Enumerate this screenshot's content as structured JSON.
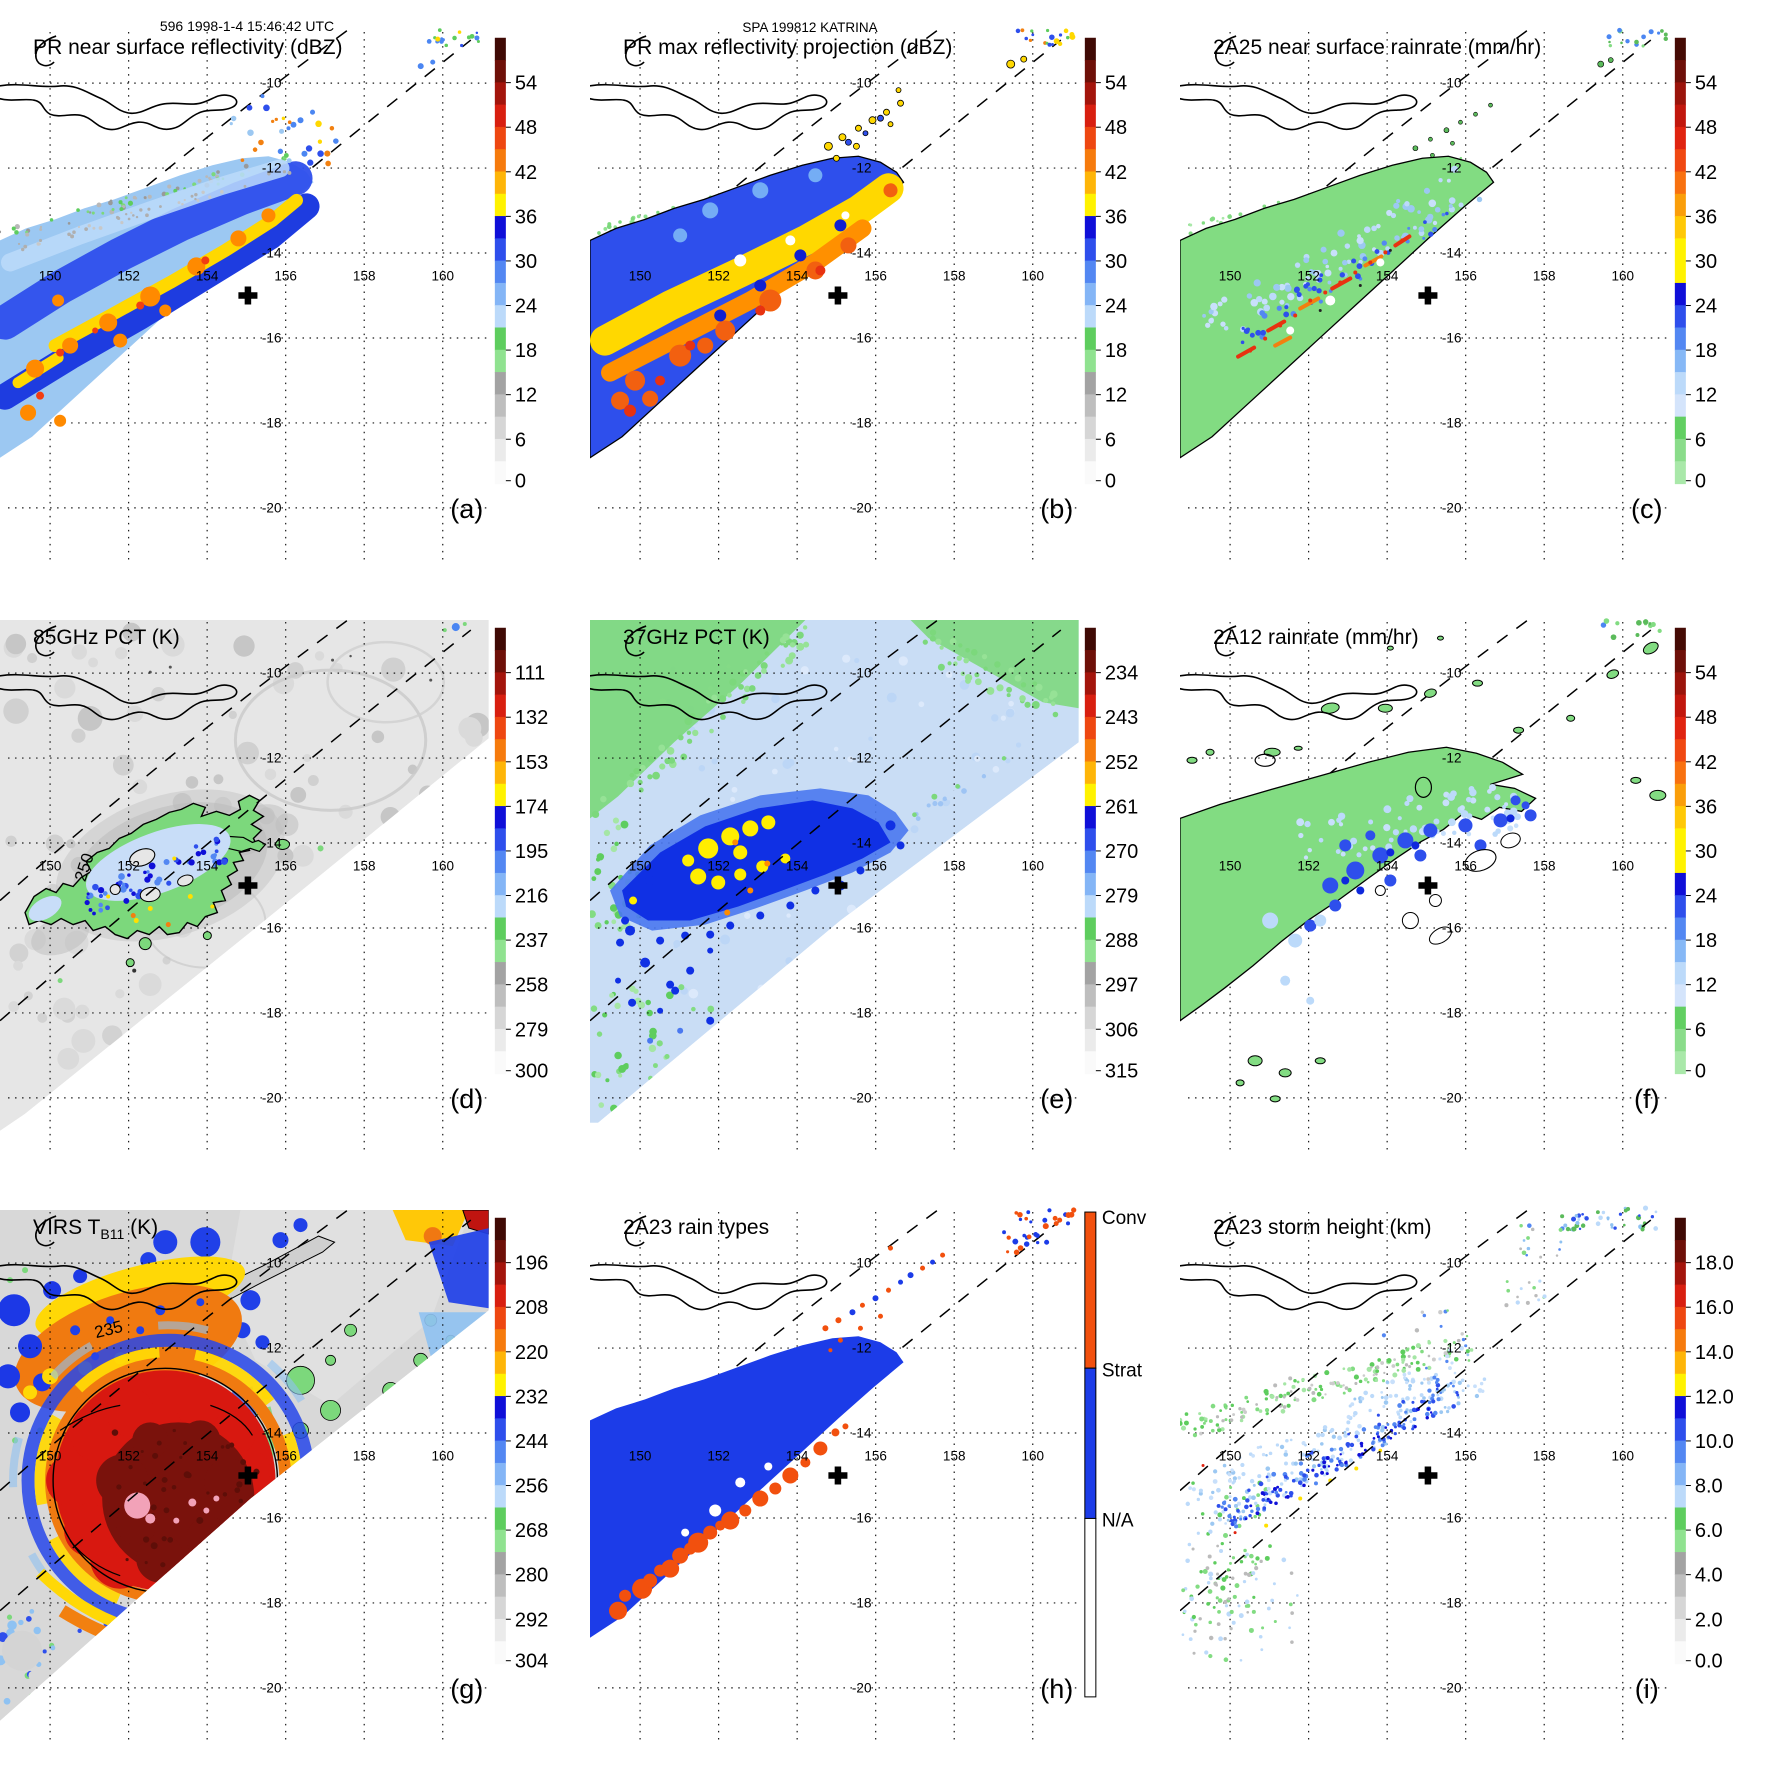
{
  "header": {
    "left": "596 1998-1-4 15:46:42 UTC",
    "center": "SPA 199812 KATRINA"
  },
  "map": {
    "lon_labels": [
      "150",
      "152",
      "154",
      "156",
      "158",
      "160"
    ],
    "lat_labels": [
      "-10",
      "-12",
      "-14",
      "-16",
      "-18",
      "-20"
    ],
    "center_marker": "+"
  },
  "panels": [
    {
      "id": "a",
      "letter": "(a)",
      "title": "PR near surface reflectivity (dBZ)",
      "colorbar_ticks": [
        "54",
        "48",
        "42",
        "36",
        "30",
        "24",
        "18",
        "12",
        "6",
        "0"
      ]
    },
    {
      "id": "b",
      "letter": "(b)",
      "title": "PR max reflectivity projection (dBZ)",
      "colorbar_ticks": [
        "54",
        "48",
        "42",
        "36",
        "30",
        "24",
        "18",
        "12",
        "6",
        "0"
      ]
    },
    {
      "id": "c",
      "letter": "(c)",
      "title": "2A25 near surface rainrate (mm/hr)",
      "colorbar_ticks": [
        "54",
        "48",
        "42",
        "36",
        "30",
        "24",
        "18",
        "12",
        "6",
        "0"
      ]
    },
    {
      "id": "d",
      "letter": "(d)",
      "title": "85GHz PCT (K)",
      "colorbar_ticks": [
        "111",
        "132",
        "153",
        "174",
        "195",
        "216",
        "237",
        "258",
        "279",
        "300"
      ],
      "contour_label": "250"
    },
    {
      "id": "e",
      "letter": "(e)",
      "title": "37GHz PCT (K)",
      "colorbar_ticks": [
        "234",
        "243",
        "252",
        "261",
        "270",
        "279",
        "288",
        "297",
        "306",
        "315"
      ]
    },
    {
      "id": "f",
      "letter": "(f)",
      "title": "2A12 rainrate (mm/hr)",
      "colorbar_ticks": [
        "54",
        "48",
        "42",
        "36",
        "30",
        "24",
        "18",
        "12",
        "6",
        "0"
      ]
    },
    {
      "id": "g",
      "letter": "(g)",
      "title_parts": {
        "pre": "VIRS T",
        "sub": "B11",
        "post": " (K)"
      },
      "colorbar_ticks": [
        "196",
        "208",
        "220",
        "232",
        "244",
        "256",
        "268",
        "280",
        "292",
        "304"
      ],
      "contour_label": "235"
    },
    {
      "id": "h",
      "letter": "(h)",
      "title": "2A23 rain types",
      "rain_type_labels": [
        "Conv",
        "Strat",
        "N/A"
      ]
    },
    {
      "id": "i",
      "letter": "(i)",
      "title": "2A23 storm height (km)",
      "colorbar_ticks": [
        "18.0",
        "16.0",
        "14.0",
        "12.0",
        "10.0",
        "8.0",
        "6.0",
        "4.0",
        "2.0",
        "0.0"
      ]
    }
  ],
  "chart_data": {
    "type": "heatmap",
    "figure": "3x3 multi-panel TRMM satellite overpass maps",
    "overpass": {
      "orbit": "596",
      "datetime_utc": "1998-1-4 15:46:42",
      "storm": "SPA 199812 KATRINA"
    },
    "axes": {
      "lon_ticks": [
        150,
        152,
        154,
        156,
        158,
        160
      ],
      "lat_ticks": [
        -10,
        -12,
        -14,
        -16,
        -18,
        -20
      ],
      "lon_range": [
        148.9,
        161.3
      ],
      "lat_range": [
        -21.3,
        -8.8
      ],
      "grid": "dotted",
      "swath_edges": "two dashed SW-NE diagonal lines (PR swath)",
      "storm_center_marker_lonlat": [
        155,
        -15
      ]
    },
    "panels": [
      {
        "id": "a",
        "title": "PR near surface reflectivity (dBZ)",
        "units": "dBZ",
        "value_range": [
          0,
          60
        ],
        "colorbar_ticks": [
          54,
          48,
          42,
          36,
          30,
          24,
          18,
          12,
          6,
          0
        ],
        "legend_position": "right",
        "features": "SW-NE rainband 149-154.5E / 13-17.5S inside narrow PR swath; blue 24-33 dBZ band with yellow-orange 36-48 dBZ cores; scattered weak echoes near 12S between swath lines"
      },
      {
        "id": "b",
        "title": "PR max reflectivity projection (dBZ)",
        "units": "dBZ",
        "value_range": [
          0,
          60
        ],
        "colorbar_ticks": [
          54,
          48,
          42,
          36,
          30,
          24,
          18,
          12,
          6,
          0
        ],
        "features": "same rainband with broader 36-48 dBZ coverage and black echo outline"
      },
      {
        "id": "c",
        "title": "2A25 near surface rainrate (mm/hr)",
        "units": "mm/hr",
        "value_range": [
          0,
          60
        ],
        "colorbar_ticks": [
          54,
          48,
          42,
          36,
          30,
          24,
          18,
          12,
          6,
          0
        ],
        "features": "light rain (0-6) green area outlined black with embedded 12-24 blue speckles and 36-54 red streak cells"
      },
      {
        "id": "d",
        "title": "85GHz PCT (K)",
        "units": "K",
        "value_range": [
          90,
          301
        ],
        "colorbar_ticks": [
          111,
          132,
          153,
          174,
          195,
          216,
          237,
          258,
          279,
          300
        ],
        "contour_label": "250",
        "features": "wide TMI swath of ~280-300K gray; ice-scattering blob 149.5-154.5E / 13.8-16.3S with 195-237K blue/green minima; 250K contour labeled"
      },
      {
        "id": "e",
        "title": "37GHz PCT (K)",
        "units": "K",
        "value_range": [
          225,
          315
        ],
        "colorbar_ticks": [
          234,
          243,
          252,
          261,
          270,
          279,
          288,
          297,
          306,
          315
        ],
        "features": "pale-blue ~279K swath, green ~288K clear regions, dark-blue 270K rainband with yellow 261K cells near 152E 15S"
      },
      {
        "id": "f",
        "title": "2A12 rainrate (mm/hr)",
        "units": "mm/hr",
        "value_range": [
          0,
          60
        ],
        "colorbar_ticks": [
          54,
          48,
          42,
          36,
          30,
          24,
          18,
          12,
          6,
          0
        ],
        "features": "TMI rain area 0-6 green extending to 158E with 12-24 blue cells; small outlined rain islands north and east"
      },
      {
        "id": "g",
        "title": "VIRS TB11 (K)",
        "units": "K",
        "value_range": [
          184,
          304
        ],
        "colorbar_ticks": [
          196,
          208,
          220,
          232,
          244,
          256,
          268,
          280,
          292,
          304
        ],
        "contour_label": "235",
        "features": "cold cirrus shield <208K (dark red/maroon) centered near 152E/15S with pink <196K overshooting tops; yellow-orange 220-232K ring; blue 244-256K; warm gray 280-300K clear air NE"
      },
      {
        "id": "h",
        "title": "2A23 rain types",
        "categories": [
          "Conv",
          "Strat",
          "N/A"
        ],
        "category_colors": [
          "#F2500E",
          "#1C3CE8",
          "#FFFFFF"
        ],
        "features": "mostly stratiform (blue) rainband with convective (orange) cells along its SW edge and scattered convective specks near 12S"
      },
      {
        "id": "i",
        "title": "2A23 storm height (km)",
        "units": "km",
        "value_range": [
          0,
          20
        ],
        "colorbar_ticks": [
          18,
          16,
          14,
          12,
          10,
          8,
          6,
          4,
          2,
          0
        ],
        "features": "echo tops mostly 6-10 km (green fringe, pale-blue body, blue 8-10 km cores), isolated ~12 km points"
      }
    ]
  }
}
